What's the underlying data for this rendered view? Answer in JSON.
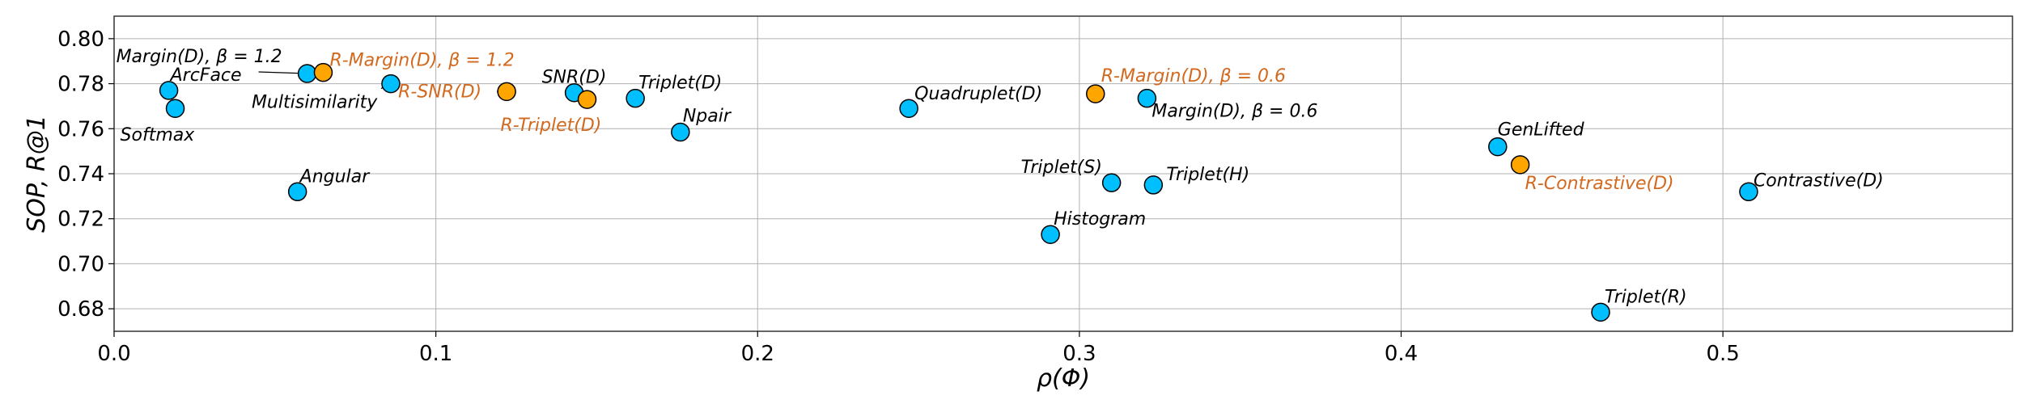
{
  "chart_data": {
    "type": "scatter",
    "title": "",
    "xlabel": "ρ(Φ)",
    "ylabel": "SOP, R@1",
    "xlim": [
      0.0,
      0.59
    ],
    "ylim": [
      0.67,
      0.81
    ],
    "xticks": [
      0.0,
      0.1,
      0.2,
      0.3,
      0.4,
      0.5
    ],
    "xtick_labels": [
      "0.0",
      "0.1",
      "0.2",
      "0.3",
      "0.4",
      "0.5"
    ],
    "yticks": [
      0.68,
      0.7,
      0.72,
      0.74,
      0.76,
      0.78,
      0.8
    ],
    "ytick_labels": [
      "0.68",
      "0.70",
      "0.72",
      "0.74",
      "0.76",
      "0.78",
      "0.80"
    ],
    "grid": true,
    "colors": {
      "baseline": "#00bfff",
      "regularized": "#ffa500",
      "regularized_text": "#d2691e"
    },
    "points": [
      {
        "label": "Margin(D), β = 1.2",
        "x": 0.06,
        "y": 0.7845,
        "group": "baseline"
      },
      {
        "label": "R-Margin(D), β = 1.2",
        "x": 0.065,
        "y": 0.785,
        "group": "regularized"
      },
      {
        "label": "ArcFace",
        "x": 0.017,
        "y": 0.777,
        "group": "baseline"
      },
      {
        "label": "Softmax",
        "x": 0.019,
        "y": 0.769,
        "group": "baseline"
      },
      {
        "label": "Multisimilarity",
        "x": 0.086,
        "y": 0.78,
        "group": "baseline"
      },
      {
        "label": "R-SNR(D)",
        "x": 0.122,
        "y": 0.7765,
        "group": "regularized"
      },
      {
        "label": "SNR(D)",
        "x": 0.143,
        "y": 0.776,
        "group": "baseline"
      },
      {
        "label": "R-Triplet(D)",
        "x": 0.147,
        "y": 0.773,
        "group": "regularized"
      },
      {
        "label": "Triplet(D)",
        "x": 0.162,
        "y": 0.7735,
        "group": "baseline"
      },
      {
        "label": "Npair",
        "x": 0.176,
        "y": 0.7585,
        "group": "baseline"
      },
      {
        "label": "Angular",
        "x": 0.057,
        "y": 0.732,
        "group": "baseline"
      },
      {
        "label": "Quadruplet(D)",
        "x": 0.247,
        "y": 0.769,
        "group": "baseline"
      },
      {
        "label": "R-Margin(D), β = 0.6",
        "x": 0.305,
        "y": 0.7755,
        "group": "regularized"
      },
      {
        "label": "Margin(D), β = 0.6",
        "x": 0.321,
        "y": 0.7735,
        "group": "baseline"
      },
      {
        "label": "Triplet(S)",
        "x": 0.31,
        "y": 0.736,
        "group": "baseline"
      },
      {
        "label": "Triplet(H)",
        "x": 0.323,
        "y": 0.735,
        "group": "baseline"
      },
      {
        "label": "Histogram",
        "x": 0.291,
        "y": 0.713,
        "group": "baseline"
      },
      {
        "label": "GenLifted",
        "x": 0.43,
        "y": 0.752,
        "group": "baseline"
      },
      {
        "label": "R-Contrastive(D)",
        "x": 0.437,
        "y": 0.744,
        "group": "regularized"
      },
      {
        "label": "Contrastive(D)",
        "x": 0.508,
        "y": 0.732,
        "group": "baseline"
      },
      {
        "label": "Triplet(R)",
        "x": 0.462,
        "y": 0.6785,
        "group": "baseline"
      }
    ]
  }
}
